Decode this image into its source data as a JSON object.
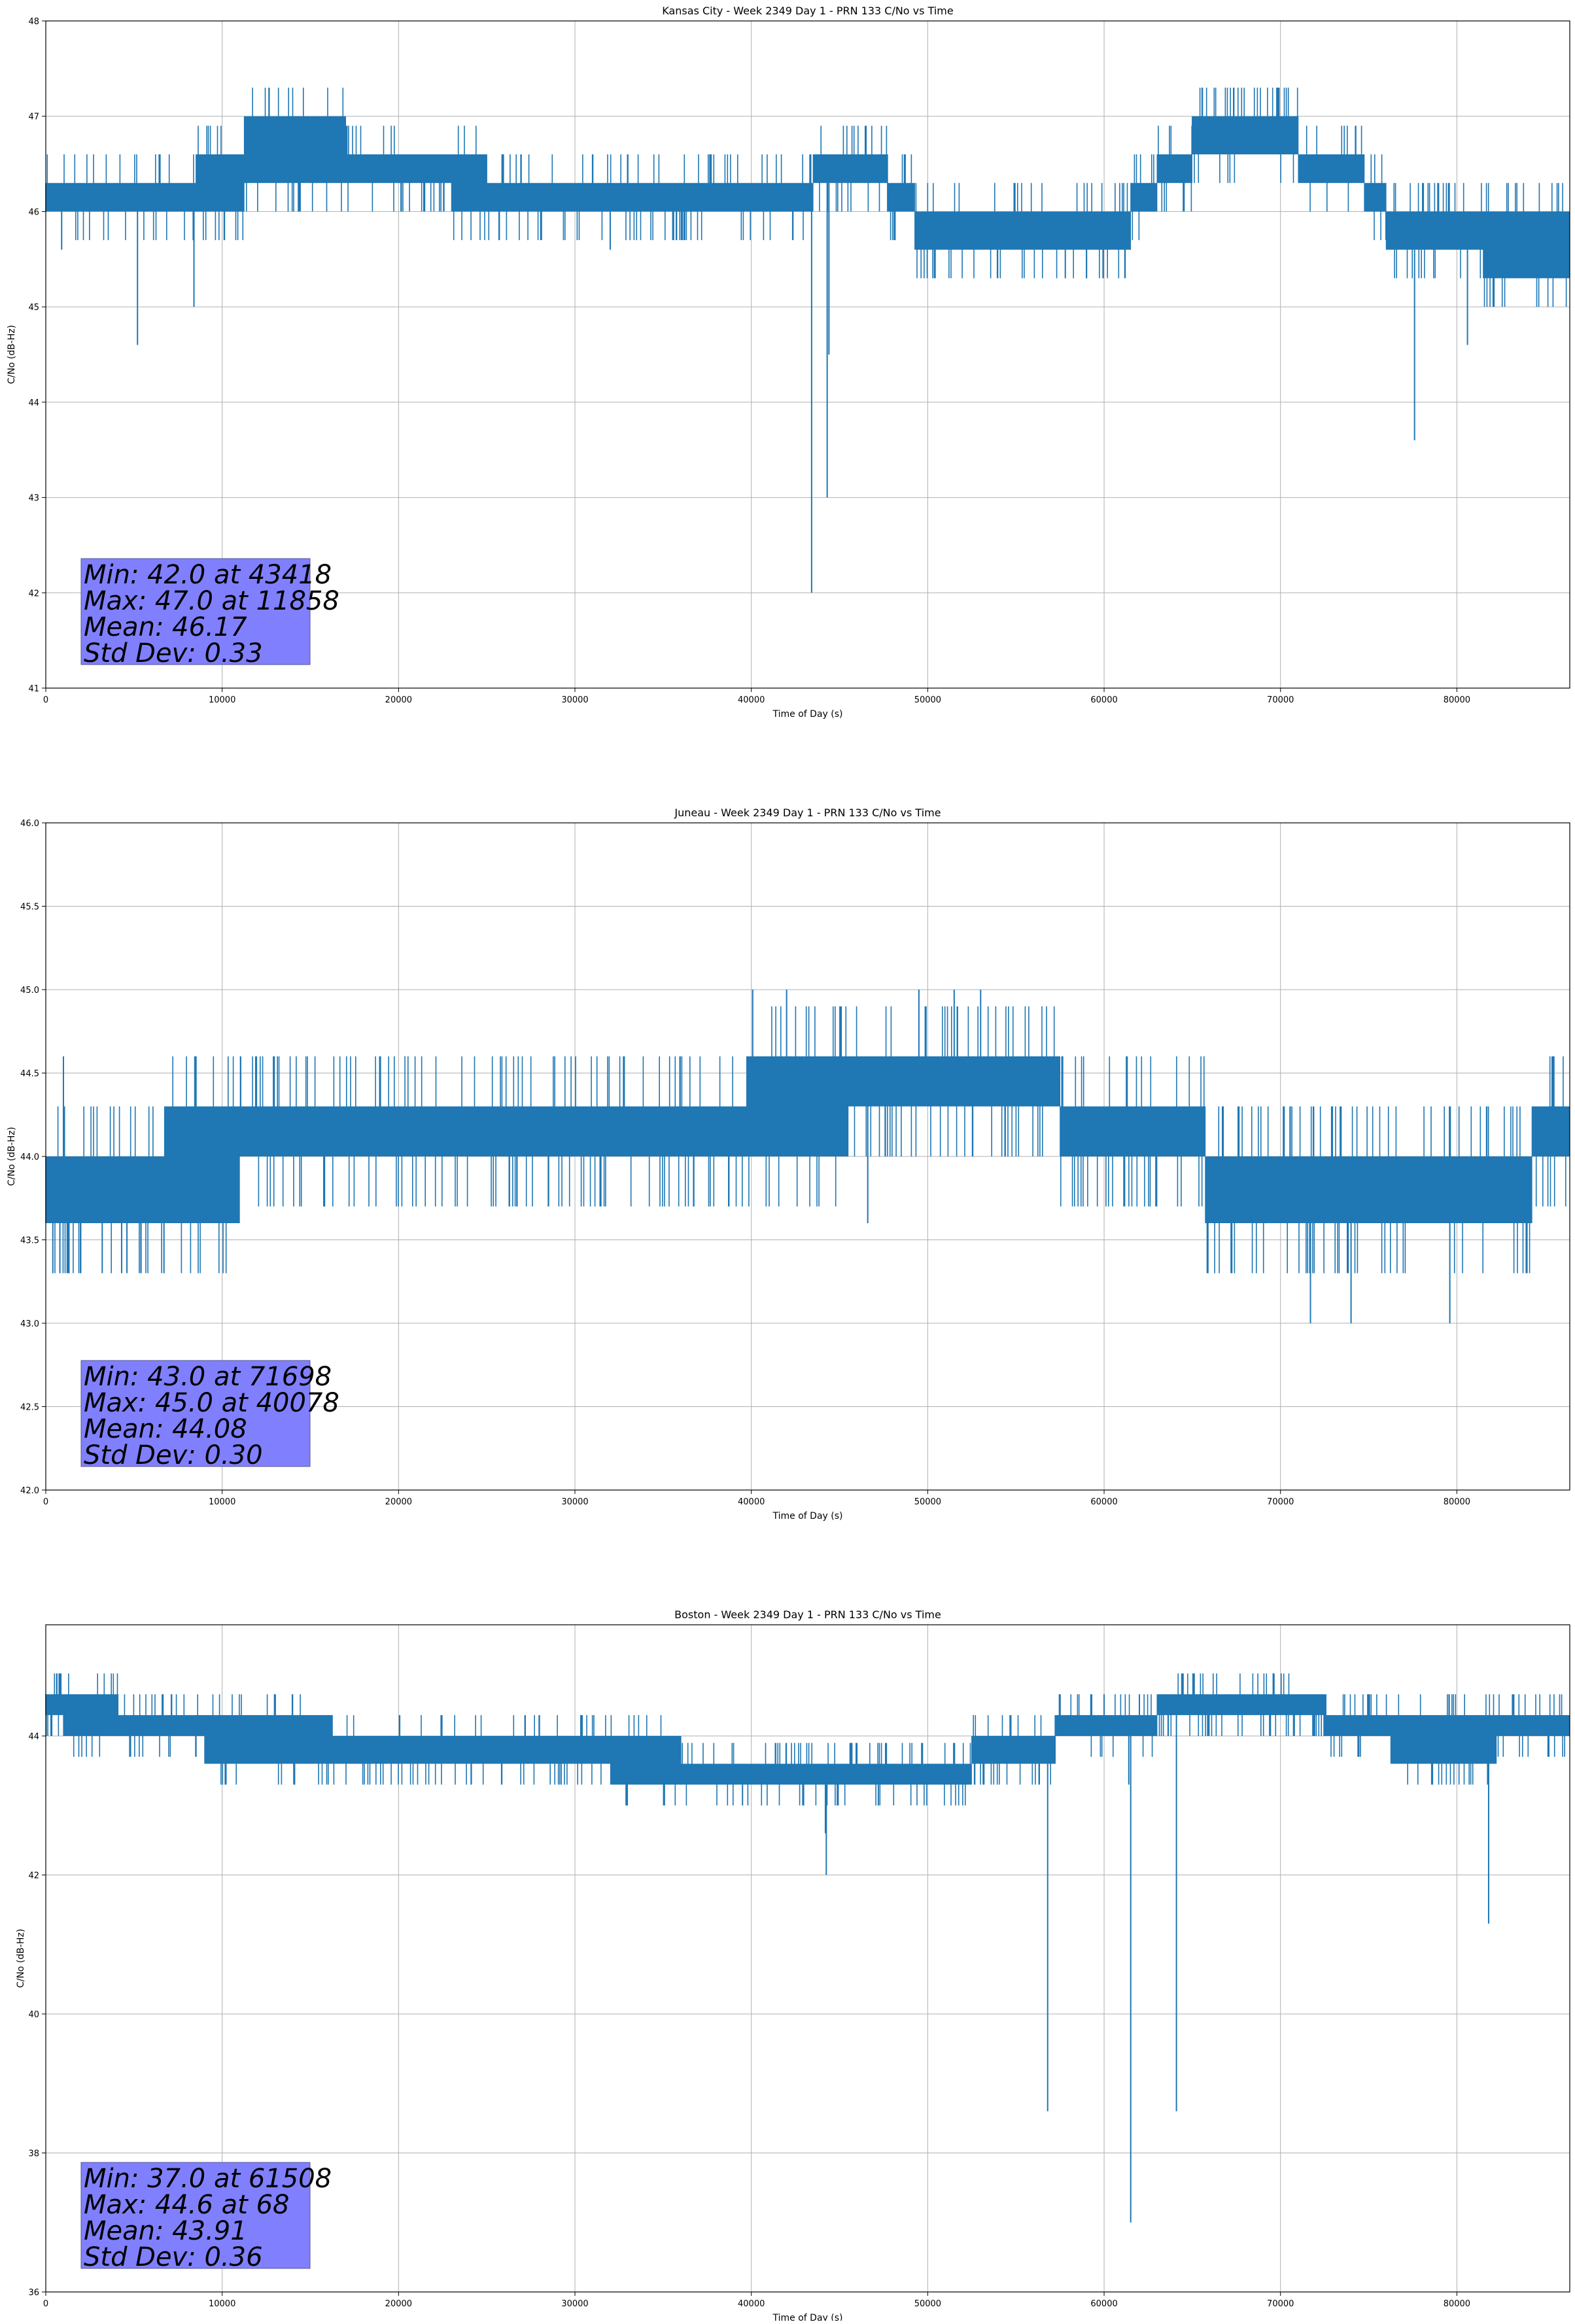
{
  "chart_data": [
    {
      "type": "line",
      "title": "Kansas City - Week 2349 Day 1 - PRN 133 C/No vs Time",
      "xlabel": "Time of Day (s)",
      "ylabel": "C/No (dB-Hz)",
      "xlim": [
        0,
        86400
      ],
      "ylim": [
        41,
        48
      ],
      "xticks": [
        0,
        10000,
        20000,
        30000,
        40000,
        50000,
        60000,
        70000,
        80000
      ],
      "xtick_labels": [
        "0",
        "10000",
        "20000",
        "30000",
        "40000",
        "50000",
        "60000",
        "70000",
        "80000"
      ],
      "yticks": [
        41,
        42,
        43,
        44,
        45,
        46,
        47,
        48
      ],
      "ytick_labels": [
        "41",
        "42",
        "43",
        "44",
        "45",
        "46",
        "47",
        "48"
      ],
      "grid": true,
      "color": "#1f77b4",
      "stats": [
        "Min: 42.0 at 43418",
        "Max: 47.0 at 11858",
        "Mean: 46.17",
        "Std Dev: 0.33"
      ],
      "spread": [
        [
          0,
          46.0,
          46.3
        ],
        [
          2000,
          46.0,
          46.3
        ],
        [
          4000,
          46.0,
          46.3
        ],
        [
          6000,
          46.0,
          46.3
        ],
        [
          8000,
          46.0,
          46.3
        ],
        [
          9000,
          46.0,
          46.6
        ],
        [
          10500,
          46.0,
          46.6
        ],
        [
          12000,
          46.3,
          47.0
        ],
        [
          14000,
          46.3,
          47.0
        ],
        [
          16000,
          46.3,
          47.0
        ],
        [
          18000,
          46.3,
          46.6
        ],
        [
          20000,
          46.3,
          46.6
        ],
        [
          22000,
          46.3,
          46.6
        ],
        [
          24000,
          46.0,
          46.6
        ],
        [
          26000,
          46.0,
          46.3
        ],
        [
          28000,
          46.0,
          46.3
        ],
        [
          30000,
          46.0,
          46.3
        ],
        [
          34000,
          46.0,
          46.3
        ],
        [
          38000,
          46.0,
          46.3
        ],
        [
          42000,
          46.0,
          46.3
        ],
        [
          45000,
          46.3,
          46.6
        ],
        [
          47000,
          46.3,
          46.6
        ],
        [
          48500,
          46.0,
          46.3
        ],
        [
          50000,
          45.6,
          46.0
        ],
        [
          54000,
          45.6,
          46.0
        ],
        [
          58000,
          45.6,
          46.0
        ],
        [
          61000,
          45.6,
          46.0
        ],
        [
          62000,
          46.0,
          46.3
        ],
        [
          64000,
          46.3,
          46.6
        ],
        [
          66000,
          46.6,
          47.0
        ],
        [
          68000,
          46.6,
          47.0
        ],
        [
          70000,
          46.6,
          47.0
        ],
        [
          72000,
          46.3,
          46.6
        ],
        [
          74000,
          46.3,
          46.6
        ],
        [
          75500,
          46.0,
          46.3
        ],
        [
          76500,
          45.6,
          46.0
        ],
        [
          80000,
          45.6,
          46.0
        ],
        [
          83000,
          45.3,
          46.0
        ],
        [
          86400,
          45.3,
          46.0
        ]
      ],
      "spikes": [
        [
          5200,
          44.6
        ],
        [
          8400,
          45.0
        ],
        [
          43418,
          42.0
        ],
        [
          44300,
          43.0
        ],
        [
          44400,
          44.5
        ],
        [
          57800,
          45.3
        ],
        [
          59000,
          45.3
        ],
        [
          77600,
          43.6
        ],
        [
          80600,
          44.6
        ],
        [
          900,
          45.6
        ],
        [
          32000,
          45.6
        ]
      ]
    },
    {
      "type": "line",
      "title": "Juneau - Week 2349 Day 1 - PRN 133 C/No vs Time",
      "xlabel": "Time of Day (s)",
      "ylabel": "C/No (dB-Hz)",
      "xlim": [
        0,
        86400
      ],
      "ylim": [
        42.0,
        46.0
      ],
      "xticks": [
        0,
        10000,
        20000,
        30000,
        40000,
        50000,
        60000,
        70000,
        80000
      ],
      "xtick_labels": [
        "0",
        "10000",
        "20000",
        "30000",
        "40000",
        "50000",
        "60000",
        "70000",
        "80000"
      ],
      "yticks": [
        42.0,
        42.5,
        43.0,
        43.5,
        44.0,
        44.5,
        45.0,
        45.5,
        46.0
      ],
      "ytick_labels": [
        "42.0",
        "42.5",
        "43.0",
        "43.5",
        "44.0",
        "44.5",
        "45.0",
        "45.5",
        "46.0"
      ],
      "grid": true,
      "color": "#1f77b4",
      "stats": [
        "Min: 43.0 at 71698",
        "Max: 45.0 at 40078",
        "Mean: 44.08",
        "Std Dev: 0.30"
      ],
      "spread": [
        [
          0,
          43.6,
          44.0
        ],
        [
          4000,
          43.6,
          44.0
        ],
        [
          6500,
          43.6,
          44.0
        ],
        [
          7000,
          43.6,
          44.3
        ],
        [
          10000,
          43.6,
          44.3
        ],
        [
          12000,
          44.0,
          44.3
        ],
        [
          16000,
          44.0,
          44.3
        ],
        [
          20000,
          44.0,
          44.3
        ],
        [
          25000,
          44.0,
          44.3
        ],
        [
          30000,
          44.0,
          44.3
        ],
        [
          35000,
          44.0,
          44.3
        ],
        [
          39500,
          44.0,
          44.3
        ],
        [
          40000,
          44.0,
          44.6
        ],
        [
          45000,
          44.0,
          44.6
        ],
        [
          46000,
          44.3,
          44.6
        ],
        [
          50000,
          44.3,
          44.6
        ],
        [
          55000,
          44.3,
          44.6
        ],
        [
          60000,
          44.0,
          44.3
        ],
        [
          65500,
          44.0,
          44.3
        ],
        [
          66000,
          43.6,
          44.0
        ],
        [
          70000,
          43.6,
          44.0
        ],
        [
          74000,
          43.6,
          44.0
        ],
        [
          78000,
          43.6,
          44.0
        ],
        [
          80000,
          43.6,
          44.0
        ],
        [
          84000,
          43.6,
          44.0
        ],
        [
          84500,
          44.0,
          44.3
        ],
        [
          86400,
          44.0,
          44.3
        ]
      ],
      "spikes": [
        [
          400,
          43.3
        ],
        [
          800,
          43.3
        ],
        [
          3200,
          43.3
        ],
        [
          4300,
          43.3
        ],
        [
          4600,
          43.3
        ],
        [
          5400,
          43.3
        ],
        [
          6700,
          43.3
        ],
        [
          46600,
          43.6
        ],
        [
          67200,
          43.3
        ],
        [
          71698,
          43.0
        ],
        [
          74000,
          43.0
        ],
        [
          79600,
          43.0
        ],
        [
          40078,
          45.0
        ],
        [
          42000,
          45.0
        ],
        [
          49500,
          45.0
        ],
        [
          51500,
          45.0
        ],
        [
          53000,
          45.0
        ],
        [
          1000,
          44.6
        ],
        [
          8500,
          44.6
        ],
        [
          85500,
          44.6
        ]
      ]
    },
    {
      "type": "line",
      "title": "Boston - Week 2349 Day 1 - PRN 133 C/No vs Time",
      "xlabel": "Time of Day (s)",
      "ylabel": "C/No (dB-Hz)",
      "xlim": [
        0,
        86400
      ],
      "ylim": [
        36,
        45.6
      ],
      "xticks": [
        0,
        10000,
        20000,
        30000,
        40000,
        50000,
        60000,
        70000,
        80000
      ],
      "xtick_labels": [
        "0",
        "10000",
        "20000",
        "30000",
        "40000",
        "50000",
        "60000",
        "70000",
        "80000"
      ],
      "yticks": [
        36,
        38,
        40,
        42,
        44
      ],
      "ytick_labels": [
        "36",
        "38",
        "40",
        "42",
        "44"
      ],
      "grid": true,
      "color": "#1f77b4",
      "stats": [
        "Min: 37.0 at 61508",
        "Max: 44.6 at 68",
        "Mean: 43.91",
        "Std Dev: 0.36"
      ],
      "spread": [
        [
          0,
          44.3,
          44.6
        ],
        [
          2000,
          44.0,
          44.6
        ],
        [
          4000,
          44.0,
          44.6
        ],
        [
          4200,
          44.0,
          44.3
        ],
        [
          8000,
          44.0,
          44.3
        ],
        [
          10000,
          43.6,
          44.3
        ],
        [
          13000,
          43.6,
          44.3
        ],
        [
          16000,
          43.6,
          44.3
        ],
        [
          16500,
          43.6,
          44.0
        ],
        [
          22000,
          43.6,
          44.0
        ],
        [
          26000,
          43.6,
          44.0
        ],
        [
          30000,
          43.6,
          44.0
        ],
        [
          34000,
          43.3,
          44.0
        ],
        [
          38000,
          43.3,
          43.6
        ],
        [
          44000,
          43.3,
          43.6
        ],
        [
          48000,
          43.3,
          43.6
        ],
        [
          52000,
          43.3,
          43.6
        ],
        [
          53000,
          43.6,
          44.0
        ],
        [
          57000,
          43.6,
          44.0
        ],
        [
          57500,
          44.0,
          44.3
        ],
        [
          62000,
          44.0,
          44.3
        ],
        [
          64000,
          44.3,
          44.6
        ],
        [
          68000,
          44.3,
          44.6
        ],
        [
          72000,
          44.3,
          44.6
        ],
        [
          73000,
          44.0,
          44.3
        ],
        [
          76000,
          44.0,
          44.3
        ],
        [
          76500,
          43.6,
          44.3
        ],
        [
          82000,
          43.6,
          44.3
        ],
        [
          82500,
          44.0,
          44.3
        ],
        [
          86400,
          44.0,
          44.3
        ]
      ],
      "spikes": [
        [
          56800,
          38.6
        ],
        [
          61508,
          37.0
        ],
        [
          64100,
          38.6
        ],
        [
          81800,
          41.3
        ],
        [
          44200,
          42.6
        ],
        [
          44250,
          42.0
        ],
        [
          61400,
          43.3
        ],
        [
          39500,
          43.0
        ],
        [
          47200,
          43.0
        ],
        [
          36000,
          43.3
        ],
        [
          68,
          44.6
        ],
        [
          60000,
          44.6
        ],
        [
          62000,
          44.6
        ]
      ]
    }
  ]
}
